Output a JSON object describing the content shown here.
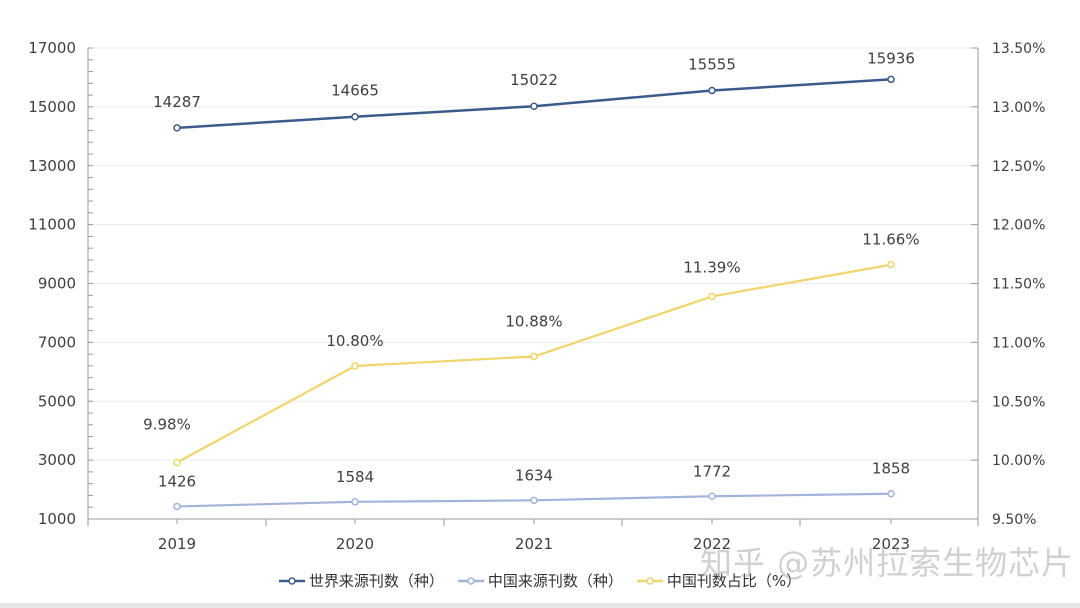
{
  "chart_data": {
    "type": "line",
    "title": "",
    "xlabel": "",
    "ylabel": "",
    "categories": [
      "2019",
      "2020",
      "2021",
      "2022",
      "2023"
    ],
    "series": [
      {
        "name": "世界来源刊数（种）",
        "axis": "left",
        "color": "#3d5a8c",
        "values": [
          14287,
          14665,
          15022,
          15555,
          15936
        ],
        "labels": [
          "14287",
          "14665",
          "15022",
          "15555",
          "15936"
        ]
      },
      {
        "name": "中国来源刊数（种）",
        "axis": "left",
        "color": "#a3b4dc",
        "values": [
          1426,
          1584,
          1634,
          1772,
          1858
        ],
        "labels": [
          "1426",
          "1584",
          "1634",
          "1772",
          "1858"
        ]
      },
      {
        "name": "中国刊数占比（%）",
        "axis": "right",
        "color": "#f0d56a",
        "values": [
          9.98,
          10.8,
          10.88,
          11.39,
          11.66
        ],
        "labels": [
          "9.98%",
          "10.80%",
          "10.88%",
          "11.39%",
          "11.66%"
        ]
      }
    ],
    "ylim": [
      1000,
      17000
    ],
    "yticks": [
      "1000",
      "3000",
      "5000",
      "7000",
      "9000",
      "11000",
      "13000",
      "15000",
      "17000"
    ],
    "y2lim": [
      9.5,
      13.5
    ],
    "y2ticks": [
      "9.50%",
      "10.00%",
      "10.50%",
      "11.00%",
      "11.50%",
      "12.00%",
      "12.50%",
      "13.00%",
      "13.50%"
    ],
    "grid": true,
    "legend_position": "bottom"
  },
  "legend": {
    "items": [
      {
        "label": "世界来源刊数（种）",
        "color": "#3d5a8c"
      },
      {
        "label": "中国来源刊数（种）",
        "color": "#a3b4dc"
      },
      {
        "label": "中国刊数占比（%）",
        "color": "#f0d56a"
      }
    ]
  },
  "watermark": "知乎 @苏州拉索生物芯片"
}
